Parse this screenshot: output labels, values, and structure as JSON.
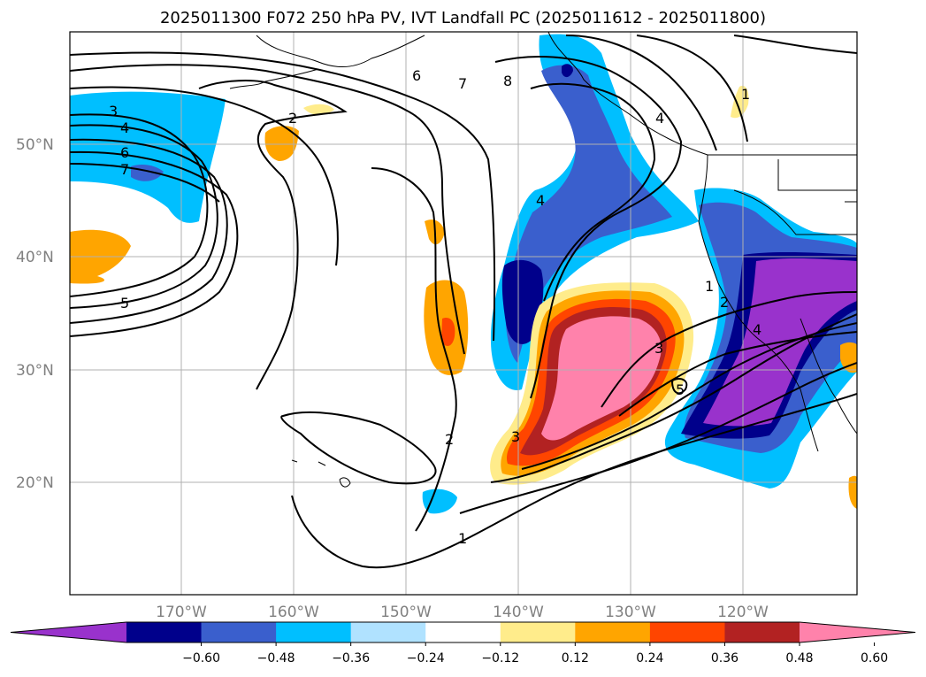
{
  "title": "2025011300 F072 250 hPa PV, IVT Landfall PC (2025011612 - 2025011800)",
  "lat_labels": [
    "50°N",
    "40°N",
    "30°N",
    "20°N"
  ],
  "lon_labels": [
    "170°W",
    "160°W",
    "150°W",
    "140°W",
    "130°W",
    "120°W"
  ],
  "colorbar": {
    "colors": [
      "#9932cc",
      "#00008b",
      "#3a5fcd",
      "#00bfff",
      "#b0e2ff",
      "#ffffff",
      "#ffec8b",
      "#ffa500",
      "#ff4500",
      "#b22222",
      "#ff82ab"
    ],
    "tick_labels": [
      "−0.60",
      "−0.48",
      "−0.36",
      "−0.24",
      "−0.12",
      "0.12",
      "0.24",
      "0.36",
      "0.48",
      "0.60"
    ]
  },
  "contour_labels": [
    "3",
    "4",
    "6",
    "7",
    "5",
    "2",
    "6",
    "7",
    "8",
    "4",
    "2",
    "1",
    "1",
    "2",
    "3",
    "4",
    "5",
    "3",
    "4",
    "1"
  ]
}
